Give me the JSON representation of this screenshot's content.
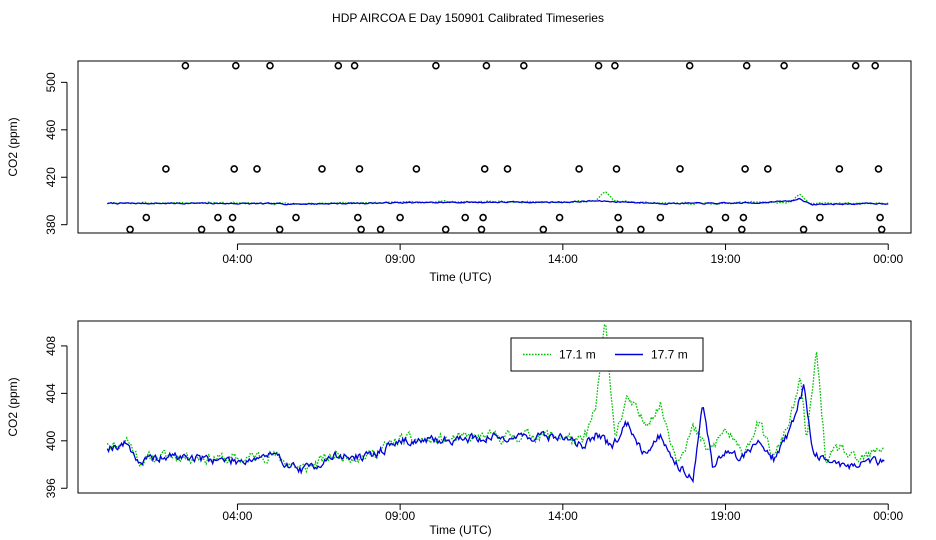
{
  "page_title": "HDP AIRCOA E  Day 150901  Calibrated Timeseries",
  "colors": {
    "green": "#00c000",
    "blue": "#0000d8",
    "axis": "#000000"
  },
  "chart_data": [
    {
      "type": "scatter",
      "xlabel": "Time (UTC)",
      "ylabel": "CO2 (ppm)",
      "x_ticks": [
        {
          "hours": 4,
          "label": "04:00"
        },
        {
          "hours": 9,
          "label": "09:00"
        },
        {
          "hours": 14,
          "label": "14:00"
        },
        {
          "hours": 19,
          "label": "19:00"
        },
        {
          "hours": 24,
          "label": "00:00"
        }
      ],
      "y_ticks": [
        380,
        420,
        460,
        500
      ],
      "xlim_hours": [
        -0.9,
        24.7
      ],
      "ylim": [
        373,
        518
      ],
      "grid": false,
      "reference_series": {
        "name": "reference tanks",
        "marker": "open-circle",
        "points": [
          [
            0.7,
            376
          ],
          [
            1.2,
            386
          ],
          [
            1.8,
            427
          ],
          [
            2.4,
            514
          ],
          [
            2.9,
            376
          ],
          [
            3.4,
            386
          ],
          [
            3.8,
            376
          ],
          [
            3.85,
            386
          ],
          [
            3.9,
            427
          ],
          [
            3.95,
            514
          ],
          [
            4.6,
            427
          ],
          [
            5.0,
            514
          ],
          [
            5.3,
            376
          ],
          [
            5.8,
            386
          ],
          [
            6.6,
            427
          ],
          [
            7.1,
            514
          ],
          [
            7.6,
            514
          ],
          [
            7.7,
            386
          ],
          [
            7.8,
            376
          ],
          [
            7.75,
            427
          ],
          [
            8.4,
            376
          ],
          [
            9.0,
            386
          ],
          [
            9.5,
            427
          ],
          [
            10.1,
            514
          ],
          [
            10.4,
            376
          ],
          [
            11.0,
            386
          ],
          [
            11.5,
            376
          ],
          [
            11.55,
            386
          ],
          [
            11.6,
            427
          ],
          [
            11.65,
            514
          ],
          [
            12.3,
            427
          ],
          [
            12.8,
            514
          ],
          [
            13.4,
            376
          ],
          [
            13.9,
            386
          ],
          [
            14.5,
            427
          ],
          [
            15.1,
            514
          ],
          [
            15.6,
            514
          ],
          [
            15.7,
            386
          ],
          [
            15.75,
            376
          ],
          [
            15.65,
            427
          ],
          [
            16.4,
            376
          ],
          [
            17.0,
            386
          ],
          [
            17.6,
            427
          ],
          [
            17.9,
            514
          ],
          [
            18.5,
            376
          ],
          [
            19.0,
            386
          ],
          [
            19.5,
            376
          ],
          [
            19.55,
            386
          ],
          [
            19.6,
            427
          ],
          [
            19.65,
            514
          ],
          [
            20.3,
            427
          ],
          [
            20.8,
            514
          ],
          [
            21.4,
            376
          ],
          [
            21.9,
            386
          ],
          [
            22.5,
            427
          ],
          [
            23.0,
            514
          ],
          [
            23.6,
            514
          ],
          [
            23.7,
            427
          ],
          [
            23.75,
            386
          ],
          [
            23.8,
            376
          ]
        ]
      },
      "series": [
        {
          "name": "17.1 m",
          "color": "#00c000",
          "style": "dotted",
          "knots": [
            [
              0,
              398
            ],
            [
              3,
              398.5
            ],
            [
              6,
              397.5
            ],
            [
              9,
              399
            ],
            [
              12,
              399.5
            ],
            [
              14,
              399
            ],
            [
              15,
              400
            ],
            [
              15.3,
              408
            ],
            [
              15.6,
              400
            ],
            [
              17,
              398
            ],
            [
              19,
              398
            ],
            [
              20,
              399
            ],
            [
              21,
              399
            ],
            [
              21.3,
              406
            ],
            [
              21.6,
              398
            ],
            [
              24,
              398
            ]
          ],
          "noise": 1.2,
          "seed": 3
        },
        {
          "name": "17.7 m",
          "color": "#0000d8",
          "style": "solid",
          "knots": [
            [
              0,
              398
            ],
            [
              3,
              398
            ],
            [
              6,
              397.5
            ],
            [
              9,
              398.5
            ],
            [
              12,
              399
            ],
            [
              14,
              399
            ],
            [
              15,
              400
            ],
            [
              17,
              398
            ],
            [
              19,
              398
            ],
            [
              20,
              398.5
            ],
            [
              21,
              400
            ],
            [
              21.3,
              402
            ],
            [
              21.6,
              397
            ],
            [
              24,
              398
            ]
          ],
          "noise": 1.0,
          "seed": 7
        }
      ]
    },
    {
      "type": "line",
      "xlabel": "Time (UTC)",
      "ylabel": "CO2 (ppm)",
      "x_ticks": [
        {
          "hours": 4,
          "label": "04:00"
        },
        {
          "hours": 9,
          "label": "09:00"
        },
        {
          "hours": 14,
          "label": "14:00"
        },
        {
          "hours": 19,
          "label": "19:00"
        },
        {
          "hours": 24,
          "label": "00:00"
        }
      ],
      "y_ticks": [
        396,
        400,
        404,
        408
      ],
      "xlim_hours": [
        -0.9,
        24.7
      ],
      "ylim": [
        395.6,
        410.1
      ],
      "grid": false,
      "legend": {
        "placement": "top-right"
      },
      "series": [
        {
          "name": "17.1 m",
          "color": "#00c000",
          "style": "dotted",
          "knots": [
            [
              0,
              400
            ],
            [
              0.3,
              399.5
            ],
            [
              0.6,
              400.2
            ],
            [
              1.0,
              398.3
            ],
            [
              1.5,
              398.6
            ],
            [
              2.0,
              398.8
            ],
            [
              3.0,
              398.6
            ],
            [
              4.0,
              398.4
            ],
            [
              5.0,
              398.9
            ],
            [
              6.0,
              397.6
            ],
            [
              7.0,
              398.8
            ],
            [
              8.0,
              398.7
            ],
            [
              9.0,
              400.1
            ],
            [
              10.0,
              400.0
            ],
            [
              11.0,
              400.2
            ],
            [
              12.0,
              400.3
            ],
            [
              13.0,
              400.5
            ],
            [
              14.0,
              400.4
            ],
            [
              14.6,
              399.8
            ],
            [
              15.0,
              402.5
            ],
            [
              15.3,
              410.0
            ],
            [
              15.6,
              400.6
            ],
            [
              16.0,
              403.5
            ],
            [
              16.5,
              401.5
            ],
            [
              17.0,
              403.0
            ],
            [
              17.5,
              398.5
            ],
            [
              18.0,
              401.0
            ],
            [
              18.5,
              399.0
            ],
            [
              19.0,
              401.0
            ],
            [
              19.5,
              398.8
            ],
            [
              20.0,
              401.5
            ],
            [
              20.5,
              398.5
            ],
            [
              21.0,
              402.0
            ],
            [
              21.3,
              405.0
            ],
            [
              21.5,
              400.0
            ],
            [
              21.8,
              407.5
            ],
            [
              22.1,
              398.0
            ],
            [
              22.5,
              399.5
            ],
            [
              23.0,
              398.2
            ],
            [
              23.5,
              398.8
            ],
            [
              23.9,
              399.6
            ]
          ],
          "noise": 0.9,
          "seed": 11
        },
        {
          "name": "17.7 m",
          "color": "#0000d8",
          "style": "solid",
          "knots": [
            [
              0,
              399.5
            ],
            [
              0.3,
              399.6
            ],
            [
              0.6,
              399.8
            ],
            [
              1.0,
              398.2
            ],
            [
              1.5,
              398.5
            ],
            [
              2.0,
              398.7
            ],
            [
              3.0,
              398.5
            ],
            [
              4.0,
              398.3
            ],
            [
              5.0,
              398.8
            ],
            [
              6.0,
              397.5
            ],
            [
              7.0,
              398.7
            ],
            [
              8.0,
              398.6
            ],
            [
              9.0,
              400.0
            ],
            [
              10.0,
              400.0
            ],
            [
              11.0,
              400.2
            ],
            [
              12.0,
              400.3
            ],
            [
              13.0,
              400.4
            ],
            [
              14.0,
              400.3
            ],
            [
              14.6,
              399.6
            ],
            [
              15.0,
              400.5
            ],
            [
              15.5,
              399.5
            ],
            [
              16.0,
              401.5
            ],
            [
              16.5,
              399.0
            ],
            [
              17.0,
              400.5
            ],
            [
              17.5,
              398.0
            ],
            [
              18.0,
              397.0
            ],
            [
              18.3,
              403.0
            ],
            [
              18.6,
              398.0
            ],
            [
              19.0,
              399.0
            ],
            [
              19.5,
              398.6
            ],
            [
              20.0,
              400.0
            ],
            [
              20.5,
              398.5
            ],
            [
              21.0,
              401.0
            ],
            [
              21.4,
              404.5
            ],
            [
              21.7,
              399.0
            ],
            [
              22.0,
              398.5
            ],
            [
              22.5,
              398.0
            ],
            [
              23.0,
              398.0
            ],
            [
              23.5,
              398.3
            ],
            [
              23.9,
              398.3
            ]
          ],
          "noise": 0.7,
          "seed": 19
        }
      ]
    }
  ]
}
